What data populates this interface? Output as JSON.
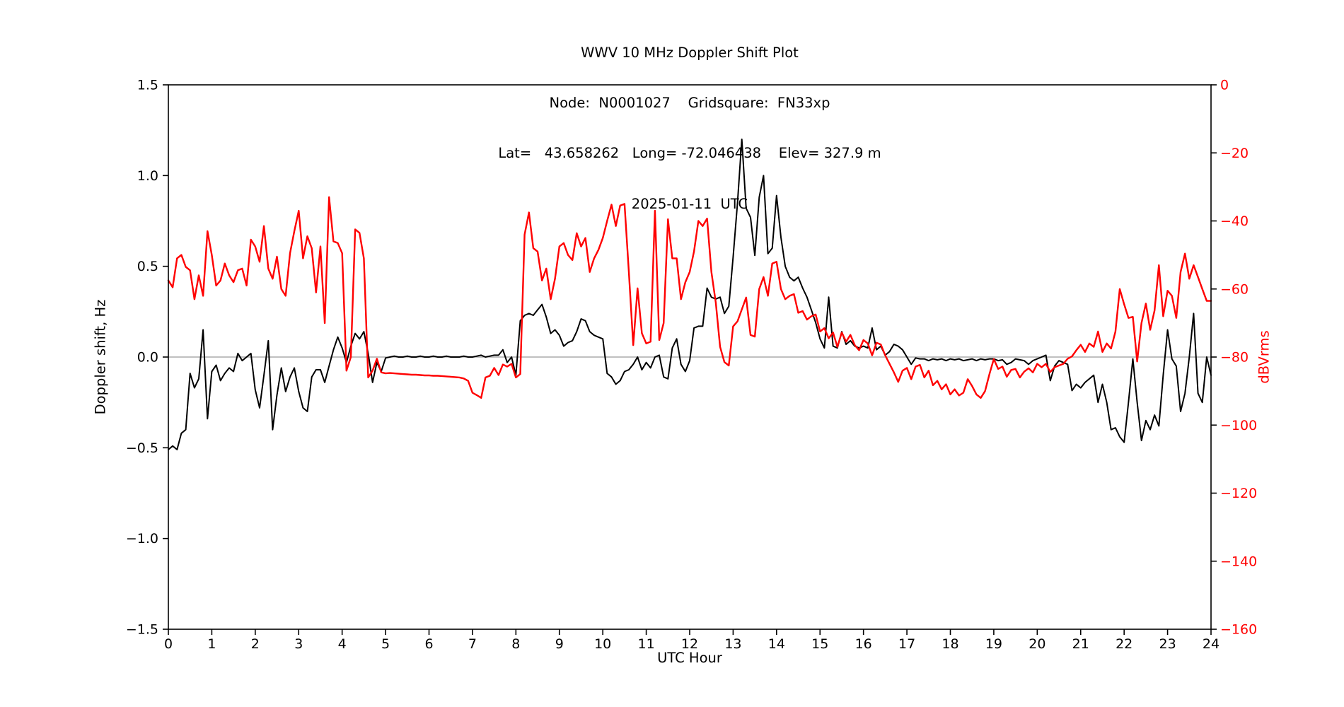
{
  "title": {
    "line1": "WWV 10 MHz Doppler Shift Plot",
    "line2": "Node:  N0001027    Gridsquare:  FN33xp",
    "line3": "Lat=   43.658262   Long= -72.046438    Elev= 327.9 m",
    "line4": "2025-01-11  UTC"
  },
  "axes": {
    "x_label": "UTC Hour",
    "y_left_label": "Doppler shift, Hz",
    "y_right_label": "dBVrms",
    "x_tick_labels": [
      "0",
      "1",
      "2",
      "3",
      "4",
      "5",
      "6",
      "7",
      "8",
      "9",
      "10",
      "11",
      "12",
      "13",
      "14",
      "15",
      "16",
      "17",
      "18",
      "19",
      "20",
      "21",
      "22",
      "23",
      "24"
    ],
    "y_left_tick_labels": [
      "1.5",
      "1.0",
      "0.5",
      "0.0",
      "−0.5",
      "−1.0",
      "−1.5"
    ],
    "y_right_tick_labels": [
      "0",
      "−20",
      "−40",
      "−60",
      "−80",
      "−100",
      "−120",
      "−140",
      "−160"
    ]
  },
  "colors": {
    "doppler_line": "#000000",
    "dbv_line": "#ff0000",
    "right_axis_text": "#ff0000",
    "zero_line": "#9a9a9a",
    "frame": "#000000"
  },
  "chart_data": {
    "type": "line",
    "title": "WWV 10 MHz Doppler Shift Plot",
    "xlabel": "UTC Hour",
    "ylabel_left": "Doppler shift, Hz",
    "ylabel_right": "dBVrms",
    "xlim": [
      0,
      24
    ],
    "ylim_left": [
      -1.5,
      1.5
    ],
    "ylim_right": [
      -160,
      0
    ],
    "grid": false,
    "zero_reference_line_hz": 0.0,
    "x_start": 0,
    "x_step": 0.1,
    "series": [
      {
        "name": "Doppler shift (Hz)",
        "axis": "left",
        "color": "#000000",
        "values": [
          -0.51,
          -0.49,
          -0.51,
          -0.42,
          -0.4,
          -0.09,
          -0.17,
          -0.12,
          0.15,
          -0.34,
          -0.08,
          -0.045,
          -0.13,
          -0.09,
          -0.06,
          -0.08,
          0.02,
          -0.02,
          0.0,
          0.02,
          -0.18,
          -0.28,
          -0.1,
          0.09,
          -0.4,
          -0.21,
          -0.06,
          -0.19,
          -0.11,
          -0.06,
          -0.19,
          -0.28,
          -0.3,
          -0.11,
          -0.07,
          -0.07,
          -0.14,
          -0.05,
          0.04,
          0.11,
          0.05,
          -0.03,
          0.06,
          0.13,
          0.1,
          0.14,
          0.02,
          -0.14,
          -0.03,
          -0.08,
          -0.005,
          0.0,
          0.005,
          0.0,
          0.0,
          0.005,
          0.0,
          0.0,
          0.005,
          0.0,
          0.0,
          0.005,
          0.0,
          0.0,
          0.005,
          0.0,
          0.0,
          0.0,
          0.005,
          0.0,
          0.0,
          0.005,
          0.01,
          0.0,
          0.005,
          0.01,
          0.01,
          0.04,
          -0.03,
          0.0,
          -0.1,
          0.2,
          0.23,
          0.24,
          0.23,
          0.26,
          0.29,
          0.22,
          0.13,
          0.15,
          0.12,
          0.06,
          0.08,
          0.09,
          0.14,
          0.21,
          0.2,
          0.14,
          0.12,
          0.11,
          0.1,
          -0.09,
          -0.11,
          -0.15,
          -0.13,
          -0.08,
          -0.07,
          -0.04,
          0.0,
          -0.07,
          -0.03,
          -0.06,
          0.0,
          0.01,
          -0.11,
          -0.12,
          0.05,
          0.1,
          -0.04,
          -0.08,
          -0.02,
          0.16,
          0.17,
          0.17,
          0.38,
          0.33,
          0.32,
          0.33,
          0.24,
          0.28,
          0.55,
          0.85,
          1.2,
          0.82,
          0.77,
          0.56,
          0.88,
          1.0,
          0.57,
          0.6,
          0.89,
          0.66,
          0.5,
          0.44,
          0.42,
          0.44,
          0.38,
          0.33,
          0.26,
          0.19,
          0.1,
          0.05,
          0.33,
          0.06,
          0.05,
          0.14,
          0.07,
          0.09,
          0.06,
          0.05,
          0.06,
          0.05,
          0.16,
          0.04,
          0.06,
          0.01,
          0.03,
          0.07,
          0.06,
          0.04,
          0.0,
          -0.04,
          -0.005,
          -0.01,
          -0.01,
          -0.02,
          -0.01,
          -0.015,
          -0.01,
          -0.02,
          -0.01,
          -0.015,
          -0.01,
          -0.02,
          -0.015,
          -0.01,
          -0.02,
          -0.01,
          -0.015,
          -0.01,
          -0.01,
          -0.02,
          -0.015,
          -0.04,
          -0.03,
          -0.01,
          -0.015,
          -0.02,
          -0.04,
          -0.02,
          -0.01,
          0.0,
          0.01,
          -0.13,
          -0.05,
          -0.02,
          -0.03,
          -0.04,
          -0.185,
          -0.15,
          -0.17,
          -0.14,
          -0.12,
          -0.1,
          -0.25,
          -0.15,
          -0.25,
          -0.4,
          -0.39,
          -0.44,
          -0.47,
          -0.25,
          -0.01,
          -0.25,
          -0.46,
          -0.35,
          -0.4,
          -0.32,
          -0.38,
          -0.1,
          0.15,
          -0.01,
          -0.05,
          -0.3,
          -0.2,
          0.0,
          0.24,
          -0.2,
          -0.25,
          0.0,
          -0.1
        ]
      },
      {
        "name": "dBVrms",
        "axis": "right",
        "color": "#ff0000",
        "values": [
          -57.5,
          -59.5,
          -51,
          -50,
          -53.5,
          -54.5,
          -63,
          -56,
          -62,
          -43,
          -50,
          -59,
          -57.5,
          -52.5,
          -56,
          -58,
          -54.5,
          -54,
          -59,
          -45.5,
          -47.5,
          -52,
          -41.5,
          -54,
          -57,
          -50.5,
          -60,
          -62,
          -49.5,
          -43,
          -37,
          -51,
          -44.5,
          -48,
          -61,
          -47.5,
          -70,
          -33,
          -46,
          -46.5,
          -49.5,
          -84,
          -80,
          -42.5,
          -43.5,
          -51,
          -86,
          -84,
          -80.5,
          -84.5,
          -84.8,
          -84.7,
          -84.8,
          -84.9,
          -85.0,
          -85.1,
          -85.2,
          -85.2,
          -85.3,
          -85.4,
          -85.4,
          -85.5,
          -85.5,
          -85.6,
          -85.7,
          -85.8,
          -85.9,
          -86.0,
          -86.3,
          -87.0,
          -90.5,
          -91.2,
          -92.0,
          -86.0,
          -85.5,
          -83.2,
          -85.3,
          -82.2,
          -82.8,
          -82.0,
          -86.0,
          -85.0,
          -44,
          -37.5,
          -48,
          -49,
          -57.5,
          -54,
          -63,
          -57,
          -47.5,
          -46.5,
          -50,
          -51.5,
          -43.6,
          -47.5,
          -45,
          -55,
          -51,
          -48.5,
          -45,
          -40,
          -35.2,
          -41.5,
          -35.5,
          -35.0,
          -55,
          -76.5,
          -59.8,
          -73,
          -76,
          -75.5,
          -37,
          -75,
          -70,
          -39.5,
          -51,
          -51,
          -63,
          -58,
          -55,
          -49,
          -40,
          -41.5,
          -39.3,
          -55,
          -64,
          -77,
          -81.5,
          -82.5,
          -71,
          -69.5,
          -66,
          -62.5,
          -73.5,
          -74,
          -60,
          -56.5,
          -62,
          -52.5,
          -52,
          -60,
          -63,
          -62,
          -61.5,
          -67,
          -66.5,
          -69,
          -68,
          -67.5,
          -72.5,
          -71.5,
          -74.5,
          -72.8,
          -77,
          -72.8,
          -75.5,
          -73.5,
          -76.5,
          -78,
          -75,
          -76,
          -79.5,
          -75.8,
          -76.3,
          -79.5,
          -82,
          -84.5,
          -87.3,
          -84,
          -83.2,
          -86.5,
          -82.8,
          -82.3,
          -86,
          -84,
          -88.3,
          -87,
          -89.5,
          -88,
          -91,
          -89.5,
          -91.3,
          -90.5,
          -86.5,
          -88.5,
          -91,
          -92,
          -90,
          -85,
          -80.6,
          -83.5,
          -82.8,
          -85.8,
          -83.8,
          -83.5,
          -86,
          -84.3,
          -83.3,
          -84.5,
          -82,
          -83,
          -82,
          -84.4,
          -83,
          -82.5,
          -82,
          -80.5,
          -79.8,
          -78,
          -76.4,
          -78.5,
          -76,
          -77,
          -72.5,
          -78.5,
          -76,
          -77.5,
          -72.5,
          -60,
          -64.5,
          -68.5,
          -68.2,
          -81.3,
          -70,
          -64.3,
          -72,
          -66.3,
          -53,
          -68,
          -60.5,
          -62,
          -68.5,
          -55,
          -49.6,
          -57,
          -53,
          -56.5,
          -60,
          -63.5,
          -63.5
        ]
      }
    ]
  }
}
